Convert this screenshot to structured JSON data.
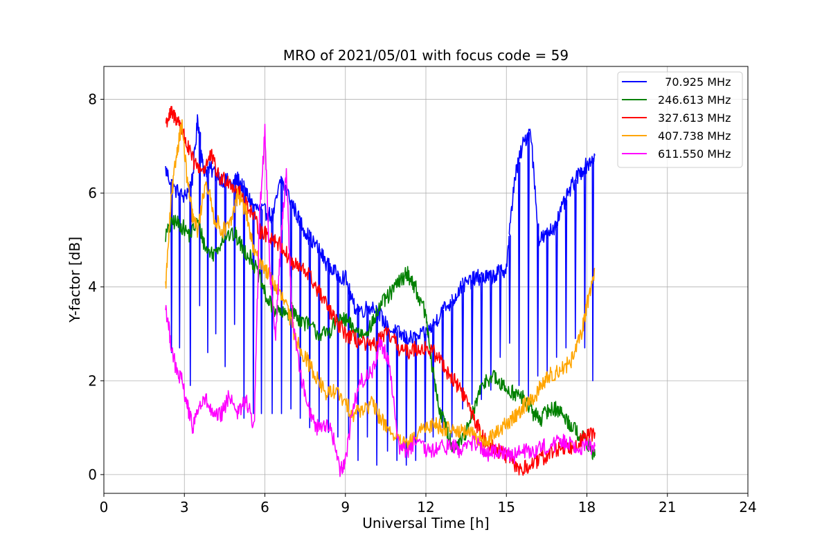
{
  "chart_data": {
    "type": "line",
    "title": "MRO of 2021/05/01 with focus code = 59",
    "xlabel": "Universal Time [h]",
    "ylabel": "Y-factor [dB]",
    "xlim": [
      0,
      24
    ],
    "ylim": [
      -0.4,
      8.7
    ],
    "xticks": [
      0,
      3,
      6,
      9,
      12,
      15,
      18,
      21,
      24
    ],
    "yticks": [
      0,
      2,
      4,
      6,
      8
    ],
    "grid": true,
    "legend_position": "top-right",
    "series": [
      {
        "name": "70.925 MHz",
        "label": "  70.925 MHz",
        "color": "#0000ff",
        "x": [
          2.3,
          2.6,
          3.0,
          3.3,
          3.5,
          3.7,
          4.0,
          4.4,
          4.8,
          5.0,
          5.3,
          5.6,
          6.0,
          6.3,
          6.6,
          7.0,
          7.3,
          7.6,
          8.0,
          8.3,
          8.6,
          9.0,
          9.3,
          9.6,
          10.0,
          10.3,
          10.6,
          11.0,
          11.3,
          11.6,
          12.0,
          12.3,
          12.6,
          13.0,
          13.3,
          13.6,
          13.9,
          14.1,
          14.4,
          14.7,
          15.0,
          15.3,
          15.6,
          15.9,
          16.2,
          16.5,
          16.8,
          17.1,
          17.4,
          17.7,
          18.0,
          18.3
        ],
        "y": [
          6.5,
          6.1,
          5.9,
          6.3,
          7.6,
          6.5,
          6.5,
          6.3,
          6.2,
          6.3,
          6.0,
          5.7,
          5.6,
          5.5,
          6.3,
          5.8,
          5.4,
          5.1,
          4.8,
          4.5,
          4.3,
          4.2,
          3.6,
          3.5,
          3.6,
          3.4,
          3.1,
          3.0,
          2.9,
          2.9,
          3.0,
          3.2,
          3.5,
          3.7,
          4.0,
          4.1,
          4.2,
          4.2,
          4.2,
          4.3,
          4.4,
          6.3,
          7.0,
          7.4,
          5.0,
          5.1,
          5.3,
          5.7,
          6.1,
          6.4,
          6.6,
          6.8
        ],
        "dips": [
          [
            2.5,
            2.6
          ],
          [
            2.8,
            2.7
          ],
          [
            3.2,
            1.9
          ],
          [
            3.55,
            3.6
          ],
          [
            3.85,
            2.6
          ],
          [
            4.15,
            3.0
          ],
          [
            4.5,
            2.3
          ],
          [
            4.85,
            3.2
          ],
          [
            5.2,
            1.2
          ],
          [
            5.55,
            1.3
          ],
          [
            5.85,
            1.3
          ],
          [
            6.25,
            1.3
          ],
          [
            6.6,
            1.3
          ],
          [
            6.95,
            1.4
          ],
          [
            7.3,
            1.2
          ],
          [
            7.65,
            1.0
          ],
          [
            8.0,
            1.1
          ],
          [
            8.35,
            0.9
          ],
          [
            8.7,
            0.8
          ],
          [
            9.1,
            0.8
          ],
          [
            9.45,
            0.3
          ],
          [
            9.8,
            0.8
          ],
          [
            10.15,
            0.2
          ],
          [
            10.55,
            0.5
          ],
          [
            10.9,
            0.3
          ],
          [
            11.25,
            0.2
          ],
          [
            11.6,
            0.3
          ],
          [
            11.95,
            0.7
          ],
          [
            12.25,
            0.8
          ],
          [
            12.6,
            1.0
          ],
          [
            12.95,
            0.8
          ],
          [
            13.35,
            1.4
          ],
          [
            13.7,
            1.5
          ],
          [
            14.05,
            1.6
          ],
          [
            14.4,
            1.8
          ],
          [
            14.75,
            2.5
          ],
          [
            15.1,
            2.8
          ],
          [
            15.45,
            1.9
          ],
          [
            15.8,
            1.6
          ],
          [
            16.15,
            2.1
          ],
          [
            16.5,
            2.1
          ],
          [
            16.85,
            2.5
          ],
          [
            17.2,
            2.7
          ],
          [
            17.55,
            2.9
          ],
          [
            17.9,
            2.7
          ],
          [
            18.2,
            2.0
          ]
        ]
      },
      {
        "name": "246.613 MHz",
        "label": "246.613 MHz",
        "color": "#008000",
        "x": [
          2.3,
          2.6,
          2.9,
          3.2,
          3.5,
          3.8,
          4.1,
          4.5,
          4.9,
          5.2,
          5.5,
          5.8,
          6.1,
          6.4,
          6.7,
          7.0,
          7.3,
          7.6,
          8.0,
          8.3,
          8.6,
          9.0,
          9.3,
          9.6,
          10.0,
          10.3,
          10.6,
          11.0,
          11.3,
          11.6,
          12.0,
          12.2,
          12.5,
          12.8,
          13.0,
          13.3,
          13.6,
          13.9,
          14.2,
          14.5,
          14.8,
          15.1,
          15.4,
          15.7,
          16.0,
          16.3,
          16.6,
          16.9,
          17.2,
          17.5,
          17.8,
          18.1,
          18.3
        ],
        "y": [
          5.1,
          5.4,
          5.3,
          5.1,
          5.4,
          4.8,
          4.7,
          5.1,
          5.1,
          4.8,
          4.6,
          4.2,
          3.7,
          3.5,
          3.4,
          3.5,
          3.3,
          3.2,
          3.0,
          3.0,
          3.2,
          3.3,
          3.1,
          3.0,
          3.2,
          3.6,
          3.8,
          4.1,
          4.3,
          4.0,
          3.4,
          2.4,
          1.4,
          0.9,
          0.6,
          0.7,
          1.0,
          1.6,
          2.0,
          2.1,
          1.9,
          1.8,
          1.7,
          1.6,
          1.3,
          1.2,
          1.4,
          1.4,
          1.2,
          1.0,
          0.8,
          0.6,
          0.4
        ]
      },
      {
        "name": "327.613 MHz",
        "label": "327.613 MHz",
        "color": "#ff0000",
        "x": [
          2.3,
          2.5,
          2.7,
          2.9,
          3.1,
          3.4,
          3.7,
          4.0,
          4.3,
          4.6,
          4.9,
          5.2,
          5.5,
          5.8,
          6.1,
          6.4,
          6.7,
          7.0,
          7.3,
          7.6,
          8.0,
          8.3,
          8.6,
          9.0,
          9.3,
          9.6,
          10.0,
          10.3,
          10.6,
          11.0,
          11.3,
          11.6,
          12.0,
          12.3,
          12.6,
          12.9,
          13.2,
          13.5,
          13.8,
          14.1,
          14.4,
          14.7,
          15.0,
          15.3,
          15.6,
          15.9,
          16.2,
          16.5,
          16.8,
          17.1,
          17.4,
          17.7,
          18.0,
          18.3
        ],
        "y": [
          7.5,
          7.7,
          7.6,
          7.4,
          7.0,
          6.6,
          6.5,
          6.8,
          6.3,
          6.3,
          6.1,
          5.9,
          5.6,
          5.2,
          5.1,
          5.0,
          4.8,
          4.5,
          4.4,
          4.3,
          3.9,
          3.6,
          3.3,
          3.0,
          2.9,
          2.8,
          2.7,
          2.9,
          3.0,
          2.7,
          2.6,
          2.7,
          2.7,
          2.6,
          2.4,
          2.1,
          1.9,
          1.6,
          1.2,
          0.8,
          0.6,
          0.5,
          0.4,
          0.2,
          0.1,
          0.2,
          0.3,
          0.4,
          0.5,
          0.6,
          0.6,
          0.7,
          0.8,
          0.9
        ]
      },
      {
        "name": "407.738 MHz",
        "label": "407.738 MHz",
        "color": "#ffa500",
        "x": [
          2.3,
          2.5,
          2.7,
          2.9,
          3.1,
          3.3,
          3.5,
          3.8,
          4.1,
          4.4,
          4.7,
          5.0,
          5.3,
          5.6,
          5.9,
          6.2,
          6.5,
          6.8,
          7.1,
          7.4,
          7.7,
          8.0,
          8.3,
          8.6,
          9.0,
          9.3,
          9.6,
          10.0,
          10.3,
          10.6,
          11.0,
          11.3,
          11.6,
          12.0,
          12.3,
          12.6,
          13.0,
          13.3,
          13.6,
          13.9,
          14.2,
          14.5,
          14.8,
          15.1,
          15.4,
          15.7,
          16.0,
          16.3,
          16.6,
          16.9,
          17.2,
          17.5,
          17.8,
          18.0,
          18.3
        ],
        "y": [
          4.0,
          5.8,
          6.8,
          7.5,
          6.3,
          5.5,
          5.2,
          6.3,
          5.5,
          5.2,
          5.3,
          6.0,
          5.6,
          4.7,
          4.5,
          4.2,
          3.9,
          3.6,
          3.0,
          2.6,
          2.3,
          2.0,
          1.7,
          1.8,
          1.5,
          1.3,
          1.4,
          1.5,
          1.2,
          1.0,
          0.7,
          0.6,
          0.8,
          1.0,
          1.1,
          1.0,
          1.0,
          0.9,
          0.9,
          0.8,
          0.7,
          0.8,
          1.0,
          1.1,
          1.3,
          1.5,
          1.6,
          1.9,
          2.1,
          2.2,
          2.3,
          2.5,
          3.0,
          3.6,
          4.4
        ]
      },
      {
        "name": "611.550 MHz",
        "label": "611.550 MHz",
        "color": "#ff00ff",
        "x": [
          2.3,
          2.5,
          2.7,
          2.9,
          3.1,
          3.3,
          3.5,
          3.8,
          4.1,
          4.4,
          4.7,
          5.0,
          5.3,
          5.6,
          5.8,
          6.0,
          6.2,
          6.4,
          6.6,
          6.8,
          7.0,
          7.3,
          7.6,
          7.9,
          8.2,
          8.5,
          8.8,
          9.0,
          9.3,
          9.6,
          10.0,
          10.3,
          10.6,
          11.0,
          11.3,
          11.6,
          12.0,
          12.3,
          12.6,
          13.0,
          13.3,
          13.6,
          14.0,
          14.3,
          14.6,
          15.0,
          15.3,
          15.6,
          16.0,
          16.3,
          16.6,
          17.0,
          17.3,
          17.6,
          18.0,
          18.3
        ],
        "y": [
          3.6,
          2.8,
          2.2,
          2.0,
          1.5,
          1.0,
          1.4,
          1.6,
          1.2,
          1.3,
          1.7,
          1.3,
          1.6,
          1.0,
          5.5,
          7.3,
          4.2,
          3.0,
          5.0,
          6.5,
          3.5,
          2.2,
          1.5,
          1.0,
          1.1,
          0.9,
          0.1,
          0.3,
          1.5,
          2.0,
          2.2,
          2.8,
          2.5,
          0.6,
          0.5,
          0.7,
          0.5,
          0.5,
          0.6,
          0.6,
          0.5,
          0.7,
          0.6,
          0.4,
          0.5,
          0.5,
          0.4,
          0.5,
          0.5,
          0.6,
          0.6,
          0.7,
          0.7,
          0.6,
          0.6,
          0.6
        ]
      }
    ]
  }
}
